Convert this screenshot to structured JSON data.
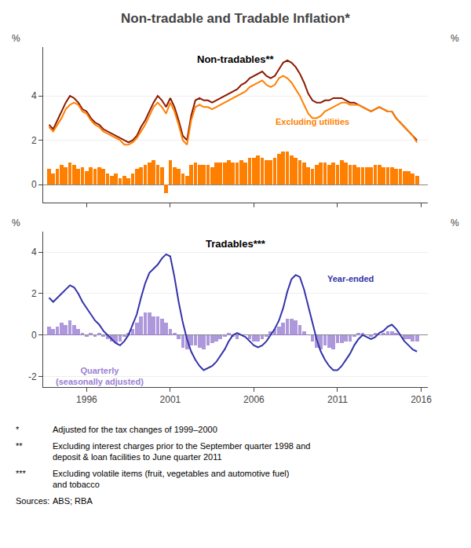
{
  "title": "Non-tradable and Tradable Inflation*",
  "chart_data": [
    {
      "type": "line",
      "title": "Non-tradables**",
      "ylabel": "%",
      "y2label": "%",
      "x": [
        1993.75,
        1994.0,
        1994.25,
        1994.5,
        1994.75,
        1995.0,
        1995.25,
        1995.5,
        1995.75,
        1996.0,
        1996.25,
        1996.5,
        1996.75,
        1997.0,
        1997.25,
        1997.5,
        1997.75,
        1998.0,
        1998.25,
        1998.5,
        1998.75,
        1999.0,
        1999.25,
        1999.5,
        1999.75,
        2000.0,
        2000.25,
        2000.5,
        2000.75,
        2001.0,
        2001.25,
        2001.5,
        2001.75,
        2002.0,
        2002.25,
        2002.5,
        2002.75,
        2003.0,
        2003.25,
        2003.5,
        2003.75,
        2004.0,
        2004.25,
        2004.5,
        2004.75,
        2005.0,
        2005.25,
        2005.5,
        2005.75,
        2006.0,
        2006.25,
        2006.5,
        2006.75,
        2007.0,
        2007.25,
        2007.5,
        2007.75,
        2008.0,
        2008.25,
        2008.5,
        2008.75,
        2009.0,
        2009.25,
        2009.5,
        2009.75,
        2010.0,
        2010.25,
        2010.5,
        2010.75,
        2011.0,
        2011.25,
        2011.5,
        2011.75,
        2012.0,
        2012.25,
        2012.5,
        2012.75,
        2013.0,
        2013.25,
        2013.5,
        2013.75,
        2014.0,
        2014.25,
        2014.5,
        2014.75,
        2015.0,
        2015.25,
        2015.5,
        2015.75
      ],
      "xlim": [
        1993.4,
        2016.4
      ],
      "xticks": [
        1996,
        2001,
        2006,
        2011,
        2016
      ],
      "tick_labels": "y",
      "ylim": [
        -0.8,
        6.2
      ],
      "yticks": [
        0,
        2,
        4
      ],
      "y2lim": [
        -0.8,
        6.2
      ],
      "y2ticks": [
        0,
        2,
        4
      ],
      "grid": true,
      "series": [
        {
          "type": "bar",
          "color": "#FF7F00",
          "values": [
            0.7,
            0.5,
            0.7,
            0.9,
            0.8,
            1.0,
            0.9,
            0.7,
            0.8,
            0.6,
            0.8,
            0.7,
            0.8,
            0.7,
            0.5,
            0.4,
            0.5,
            0.3,
            0.4,
            0.3,
            0.5,
            0.7,
            0.8,
            0.9,
            1.0,
            1.1,
            0.9,
            0.8,
            -0.4,
            1.1,
            0.8,
            0.7,
            0.5,
            0.4,
            0.9,
            1.0,
            0.9,
            0.9,
            0.9,
            0.8,
            1.0,
            1.0,
            1.0,
            1.1,
            1.0,
            1.0,
            1.1,
            1.0,
            1.2,
            1.2,
            1.3,
            1.2,
            1.1,
            1.1,
            1.2,
            1.4,
            1.5,
            1.5,
            1.3,
            1.2,
            1.1,
            1.0,
            0.8,
            0.7,
            0.9,
            1.0,
            1.0,
            0.9,
            1.0,
            0.9,
            1.1,
            1.0,
            0.9,
            0.9,
            0.8,
            0.8,
            0.8,
            0.8,
            0.9,
            0.9,
            0.8,
            0.8,
            0.8,
            0.7,
            0.7,
            0.6,
            0.6,
            0.5,
            0.4
          ]
        },
        {
          "type": "line",
          "color": "#8B1A00",
          "values": [
            2.7,
            2.5,
            2.9,
            3.3,
            3.7,
            4.0,
            3.9,
            3.7,
            3.4,
            3.3,
            3.0,
            2.8,
            2.7,
            2.5,
            2.4,
            2.3,
            2.2,
            2.1,
            2.0,
            1.9,
            2.0,
            2.2,
            2.6,
            2.9,
            3.3,
            3.7,
            4.0,
            3.8,
            3.5,
            3.9,
            3.5,
            2.9,
            2.2,
            2.0,
            3.1,
            3.8,
            3.9,
            3.8,
            3.8,
            3.7,
            3.8,
            3.9,
            4.0,
            4.1,
            4.2,
            4.3,
            4.5,
            4.6,
            4.8,
            4.9,
            5.0,
            5.1,
            4.9,
            4.8,
            4.9,
            5.2,
            5.5,
            5.6,
            5.5,
            5.3,
            5.0,
            4.6,
            4.1,
            3.8,
            3.7,
            3.7,
            3.8,
            3.8,
            3.9,
            3.9,
            3.9,
            3.8,
            3.7,
            3.7,
            3.6,
            3.5,
            3.4,
            3.3,
            3.4,
            3.5,
            3.4,
            3.3,
            3.3,
            3.0,
            2.8,
            2.6,
            2.4,
            2.2,
            2.0
          ]
        },
        {
          "type": "line",
          "color": "#FF7F00",
          "values": [
            2.6,
            2.4,
            2.7,
            3.0,
            3.4,
            3.6,
            3.7,
            3.6,
            3.3,
            3.2,
            2.9,
            2.7,
            2.6,
            2.4,
            2.3,
            2.2,
            2.1,
            2.0,
            1.8,
            1.8,
            1.9,
            2.1,
            2.4,
            2.7,
            3.1,
            3.5,
            3.7,
            3.5,
            3.2,
            3.7,
            3.3,
            2.7,
            2.0,
            1.8,
            2.9,
            3.5,
            3.6,
            3.5,
            3.5,
            3.4,
            3.5,
            3.6,
            3.7,
            3.8,
            3.9,
            4.0,
            4.1,
            4.2,
            4.4,
            4.5,
            4.6,
            4.7,
            4.5,
            4.4,
            4.5,
            4.8,
            4.9,
            4.8,
            4.6,
            4.3,
            4.0,
            3.6,
            3.2,
            3.0,
            3.0,
            3.1,
            3.3,
            3.4,
            3.5,
            3.6,
            3.7,
            3.7,
            3.6,
            3.6,
            3.6,
            3.5,
            3.4,
            3.3,
            3.4,
            3.5,
            3.4,
            3.3,
            3.3,
            3.0,
            2.8,
            2.6,
            2.4,
            2.2,
            1.9
          ]
        }
      ],
      "annotations": [
        {
          "text": "Excluding utilities",
          "x": 2007.2,
          "y": 2.55,
          "color": "#FF7F00"
        }
      ]
    },
    {
      "type": "line",
      "title": "Tradables***",
      "ylabel": "%",
      "y2label": "%",
      "x": [
        1993.75,
        1994.0,
        1994.25,
        1994.5,
        1994.75,
        1995.0,
        1995.25,
        1995.5,
        1995.75,
        1996.0,
        1996.25,
        1996.5,
        1996.75,
        1997.0,
        1997.25,
        1997.5,
        1997.75,
        1998.0,
        1998.25,
        1998.5,
        1998.75,
        1999.0,
        1999.25,
        1999.5,
        1999.75,
        2000.0,
        2000.25,
        2000.5,
        2000.75,
        2001.0,
        2001.25,
        2001.5,
        2001.75,
        2002.0,
        2002.25,
        2002.5,
        2002.75,
        2003.0,
        2003.25,
        2003.5,
        2003.75,
        2004.0,
        2004.25,
        2004.5,
        2004.75,
        2005.0,
        2005.25,
        2005.5,
        2005.75,
        2006.0,
        2006.25,
        2006.5,
        2006.75,
        2007.0,
        2007.25,
        2007.5,
        2007.75,
        2008.0,
        2008.25,
        2008.5,
        2008.75,
        2009.0,
        2009.25,
        2009.5,
        2009.75,
        2010.0,
        2010.25,
        2010.5,
        2010.75,
        2011.0,
        2011.25,
        2011.5,
        2011.75,
        2012.0,
        2012.25,
        2012.5,
        2012.75,
        2013.0,
        2013.25,
        2013.5,
        2013.75,
        2014.0,
        2014.25,
        2014.5,
        2014.75,
        2015.0,
        2015.25,
        2015.5,
        2015.75
      ],
      "xlim": [
        1993.4,
        2016.4
      ],
      "xticks": [
        1996,
        2001,
        2006,
        2011,
        2016
      ],
      "ylim": [
        -2.5,
        5.0
      ],
      "yticks": [
        -2,
        0,
        2,
        4
      ],
      "y2lim": [
        -2.5,
        5.0
      ],
      "y2ticks": [
        -2,
        0,
        2,
        4
      ],
      "grid": true,
      "series": [
        {
          "type": "bar",
          "color": "#9B7FD4",
          "values": [
            0.4,
            0.3,
            0.4,
            0.6,
            0.5,
            0.7,
            0.5,
            0.3,
            0.1,
            -0.1,
            0.1,
            -0.1,
            0.1,
            -0.1,
            -0.2,
            -0.3,
            -0.4,
            -0.3,
            -0.1,
            0.1,
            0.3,
            0.6,
            0.9,
            1.1,
            1.1,
            0.9,
            0.9,
            0.8,
            0.6,
            0.3,
            0.1,
            -0.2,
            -0.6,
            -0.7,
            -0.5,
            -0.5,
            -0.6,
            -0.7,
            -0.5,
            -0.4,
            -0.3,
            -0.2,
            -0.1,
            0.1,
            -0.1,
            -0.2,
            0.0,
            0.0,
            -0.2,
            -0.3,
            -0.3,
            -0.2,
            -0.1,
            0.2,
            0.3,
            0.4,
            0.6,
            0.8,
            0.8,
            0.7,
            0.5,
            0.2,
            0.0,
            -0.3,
            -0.6,
            -0.7,
            -0.5,
            -0.6,
            -0.7,
            -0.4,
            -0.4,
            -0.3,
            -0.3,
            -0.1,
            0.1,
            0.1,
            0.0,
            -0.1,
            0.1,
            0.0,
            0.1,
            0.2,
            0.2,
            0.1,
            0.0,
            -0.2,
            -0.2,
            -0.3,
            -0.3
          ]
        },
        {
          "type": "line",
          "color": "#3333AA",
          "values": [
            1.8,
            1.6,
            1.8,
            2.0,
            2.2,
            2.4,
            2.3,
            2.0,
            1.6,
            1.3,
            1.0,
            0.7,
            0.5,
            0.2,
            0.0,
            -0.2,
            -0.4,
            -0.5,
            -0.3,
            0.0,
            0.5,
            1.0,
            1.8,
            2.5,
            3.0,
            3.2,
            3.4,
            3.7,
            3.9,
            3.8,
            2.8,
            1.6,
            0.6,
            -0.2,
            -0.8,
            -1.2,
            -1.5,
            -1.7,
            -1.6,
            -1.5,
            -1.3,
            -1.0,
            -0.7,
            -0.3,
            0.0,
            0.1,
            0.0,
            -0.1,
            -0.3,
            -0.5,
            -0.6,
            -0.5,
            -0.3,
            0.0,
            0.3,
            0.7,
            1.3,
            2.1,
            2.7,
            2.9,
            2.8,
            2.2,
            1.4,
            0.5,
            -0.2,
            -0.8,
            -1.2,
            -1.5,
            -1.7,
            -1.7,
            -1.5,
            -1.2,
            -0.9,
            -0.5,
            -0.2,
            0.0,
            -0.1,
            -0.2,
            -0.1,
            0.1,
            0.2,
            0.4,
            0.5,
            0.3,
            0.0,
            -0.3,
            -0.5,
            -0.7,
            -0.8
          ]
        }
      ],
      "annotations": [
        {
          "text": "Year-ended",
          "x": 2010.3,
          "y": 2.4,
          "color": "#3333AA"
        },
        {
          "text": "Quarterly\n(seasonally adjusted)",
          "x": 1996.8,
          "y": -1.4,
          "color": "#9B7FD4"
        }
      ]
    }
  ],
  "footnotes": [
    {
      "label": "*",
      "text": "Adjusted for the tax changes of 1999–2000"
    },
    {
      "label": "**",
      "text": "Excluding interest charges prior to the September quarter 1998 and\ndeposit & loan facilities to June quarter 2011"
    },
    {
      "label": "***",
      "text": "Excluding volatile items (fruit, vegetables and automotive fuel)\nand tobacco"
    },
    {
      "label": "Sources:",
      "text": "ABS; RBA"
    }
  ]
}
